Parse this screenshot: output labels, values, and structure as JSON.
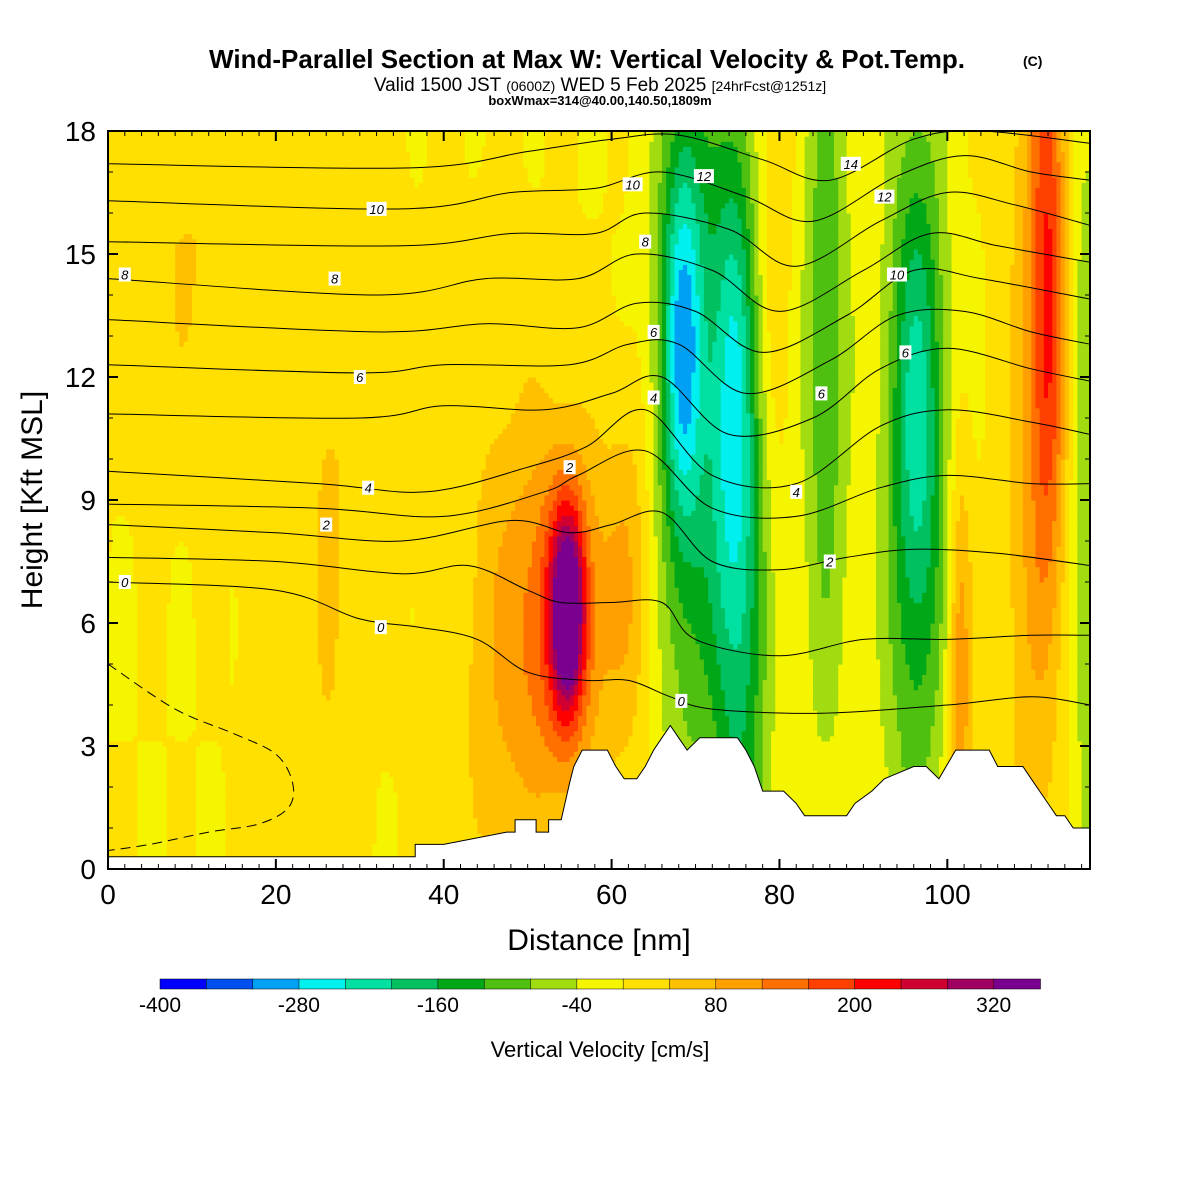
{
  "chart_data": {
    "type": "heatmap",
    "title": "Wind-Parallel Section at Max W: Vertical Velocity & Pot.Temp.",
    "title_mark": "(C)",
    "valid_line": {
      "part1": "Valid 1500 JST",
      "part2": "(0600Z)",
      "part3": "WED 5 Feb 2025",
      "part4": "[24hrFcst@1251z]"
    },
    "box_line": "boxWmax=314@40.00,140.50,1809m",
    "xlabel": "Distance [nm]",
    "ylabel": "Height [Kft MSL]",
    "xlim": [
      0,
      117
    ],
    "ylim": [
      0,
      18
    ],
    "x_ticks": [
      "0",
      "20",
      "40",
      "60",
      "80",
      "100"
    ],
    "x_tick_values": [
      0,
      20,
      40,
      60,
      80,
      100
    ],
    "y_ticks": [
      "0",
      "3",
      "6",
      "9",
      "12",
      "15",
      "18"
    ],
    "y_tick_values": [
      0,
      3,
      6,
      9,
      12,
      15,
      18
    ],
    "colorbar": {
      "label": "Vertical Velocity [cm/s]",
      "levels": [
        -400,
        -360,
        -320,
        -280,
        -240,
        -200,
        -160,
        -120,
        -80,
        -40,
        0,
        40,
        80,
        120,
        160,
        200,
        240,
        280,
        320,
        360
      ],
      "colors": [
        "#0000ff",
        "#0050f0",
        "#00a0f5",
        "#00f0f0",
        "#00e0a0",
        "#00c060",
        "#00a818",
        "#50c010",
        "#a0dc10",
        "#f5f500",
        "#ffe000",
        "#ffc000",
        "#ffa000",
        "#ff7000",
        "#ff4000",
        "#ff0000",
        "#d00030",
        "#a00060",
        "#7a0090"
      ],
      "tick_labels": [
        "-400",
        "-280",
        "-160",
        "-40",
        "80",
        "200",
        "320"
      ],
      "tick_values": [
        -400,
        -280,
        -160,
        -40,
        80,
        200,
        320
      ]
    },
    "velocity_features": [
      {
        "x": 54.8,
        "y": 6.3,
        "sx": 1.3,
        "sy": 1.6,
        "value": 300
      },
      {
        "x": 54.5,
        "y": 6.5,
        "sx": 3.0,
        "sy": 2.8,
        "value": 140
      },
      {
        "x": 52.5,
        "y": 5.0,
        "sx": 5.5,
        "sy": 3.5,
        "value": 60
      },
      {
        "x": 62.0,
        "y": 7.2,
        "sx": 2.0,
        "sy": 3.0,
        "value": 70
      },
      {
        "x": 48.0,
        "y": 6.0,
        "sx": 3.0,
        "sy": 5.0,
        "value": 45
      },
      {
        "x": 42.0,
        "y": 5.5,
        "sx": 3.5,
        "sy": 6.0,
        "value": 20
      },
      {
        "x": 68.5,
        "y": 13.0,
        "sx": 1.8,
        "sy": 3.5,
        "value": -200
      },
      {
        "x": 69.0,
        "y": 11.0,
        "sx": 2.8,
        "sy": 8.0,
        "value": -110
      },
      {
        "x": 74.5,
        "y": 11.0,
        "sx": 2.2,
        "sy": 5.0,
        "value": -160
      },
      {
        "x": 75.5,
        "y": 6.0,
        "sx": 2.5,
        "sy": 10.0,
        "value": -120
      },
      {
        "x": 78.5,
        "y": 15.0,
        "sx": 2.0,
        "sy": 5.0,
        "value": 60
      },
      {
        "x": 85.5,
        "y": 13.0,
        "sx": 2.0,
        "sy": 7.0,
        "value": -110
      },
      {
        "x": 96.5,
        "y": 11.0,
        "sx": 2.2,
        "sy": 4.5,
        "value": -150
      },
      {
        "x": 96.0,
        "y": 8.0,
        "sx": 3.0,
        "sy": 9.0,
        "value": -80
      },
      {
        "x": 101.5,
        "y": 4.5,
        "sx": 1.0,
        "sy": 4.0,
        "value": 120
      },
      {
        "x": 112.0,
        "y": 14.0,
        "sx": 1.6,
        "sy": 6.0,
        "value": 200
      },
      {
        "x": 109.0,
        "y": 8.0,
        "sx": 2.0,
        "sy": 10.0,
        "value": 50
      },
      {
        "x": 116.5,
        "y": 10.0,
        "sx": 1.5,
        "sy": 8.0,
        "value": -70
      },
      {
        "x": 10.0,
        "y": 15.0,
        "sx": 6.0,
        "sy": 3.5,
        "value": 40
      },
      {
        "x": 28.0,
        "y": 14.0,
        "sx": 4.0,
        "sy": 6.0,
        "value": 30
      },
      {
        "x": 18.0,
        "y": 6.0,
        "sx": 1.5,
        "sy": 8.0,
        "value": 30
      },
      {
        "x": 26.0,
        "y": 5.0,
        "sx": 2.0,
        "sy": 6.0,
        "value": 30
      }
    ],
    "terrain": [
      [
        0,
        0.3
      ],
      [
        36.6,
        0.3
      ],
      [
        36.6,
        0.6
      ],
      [
        40,
        0.6
      ],
      [
        40,
        0.6
      ],
      [
        47.5,
        0.9
      ],
      [
        48.5,
        0.9
      ],
      [
        48.5,
        1.2
      ],
      [
        51,
        1.2
      ],
      [
        51,
        0.9
      ],
      [
        52.5,
        0.9
      ],
      [
        52.5,
        1.2
      ],
      [
        54,
        1.2
      ],
      [
        55,
        2.1
      ],
      [
        55.5,
        2.5
      ],
      [
        56.5,
        2.9
      ],
      [
        59.5,
        2.9
      ],
      [
        60.5,
        2.5
      ],
      [
        61.5,
        2.2
      ],
      [
        63,
        2.2
      ],
      [
        64,
        2.5
      ],
      [
        65,
        2.9
      ],
      [
        66,
        3.2
      ],
      [
        67,
        3.5
      ],
      [
        68,
        3.2
      ],
      [
        69,
        2.9
      ],
      [
        70.5,
        3.2
      ],
      [
        75,
        3.2
      ],
      [
        76,
        2.9
      ],
      [
        77,
        2.5
      ],
      [
        78,
        1.9
      ],
      [
        80.5,
        1.9
      ],
      [
        82,
        1.6
      ],
      [
        83,
        1.3
      ],
      [
        88,
        1.3
      ],
      [
        89,
        1.6
      ],
      [
        91,
        1.9
      ],
      [
        92.5,
        2.2
      ],
      [
        96,
        2.5
      ],
      [
        97.5,
        2.5
      ],
      [
        99,
        2.2
      ],
      [
        101,
        2.9
      ],
      [
        105,
        2.9
      ],
      [
        106,
        2.5
      ],
      [
        109,
        2.5
      ],
      [
        110,
        2.2
      ],
      [
        111,
        1.9
      ],
      [
        112,
        1.6
      ],
      [
        113,
        1.3
      ],
      [
        114,
        1.3
      ],
      [
        115,
        1.0
      ],
      [
        117,
        1.0
      ]
    ],
    "theta_contours": [
      {
        "label": "0",
        "pts": [
          [
            0,
            7.0
          ],
          [
            20,
            6.8
          ],
          [
            30,
            6.1
          ],
          [
            37,
            5.9
          ],
          [
            44,
            5.6
          ],
          [
            50,
            4.8
          ],
          [
            57,
            4.6
          ],
          [
            62,
            4.6
          ],
          [
            67,
            4.2
          ],
          [
            72,
            3.9
          ],
          [
            85,
            3.8
          ],
          [
            100,
            4.0
          ],
          [
            110,
            4.2
          ],
          [
            117,
            4.0
          ]
        ]
      },
      {
        "label": "",
        "pts": [
          [
            0,
            7.6
          ],
          [
            20,
            7.5
          ],
          [
            35,
            7.2
          ],
          [
            43,
            7.4
          ],
          [
            50,
            6.8
          ],
          [
            54,
            6.5
          ],
          [
            60,
            6.5
          ],
          [
            66,
            6.5
          ],
          [
            70,
            5.6
          ],
          [
            80,
            5.2
          ],
          [
            90,
            5.6
          ],
          [
            100,
            5.6
          ],
          [
            110,
            5.7
          ],
          [
            117,
            5.7
          ]
        ]
      },
      {
        "label": "2",
        "pts": [
          [
            0,
            8.4
          ],
          [
            20,
            8.2
          ],
          [
            35,
            8.0
          ],
          [
            48,
            8.5
          ],
          [
            55,
            8.2
          ],
          [
            60,
            8.4
          ],
          [
            66,
            8.7
          ],
          [
            72,
            7.5
          ],
          [
            80,
            7.3
          ],
          [
            88,
            7.6
          ],
          [
            96,
            7.8
          ],
          [
            106,
            7.7
          ],
          [
            117,
            7.4
          ]
        ]
      },
      {
        "label": "",
        "pts": [
          [
            0,
            8.9
          ],
          [
            25,
            8.8
          ],
          [
            40,
            8.6
          ],
          [
            52,
            9.2
          ],
          [
            56,
            9.6
          ],
          [
            64,
            10.2
          ],
          [
            72,
            8.8
          ],
          [
            82,
            8.6
          ],
          [
            92,
            9.3
          ],
          [
            100,
            9.6
          ],
          [
            110,
            9.4
          ],
          [
            117,
            9.4
          ]
        ]
      },
      {
        "label": "4",
        "pts": [
          [
            0,
            9.7
          ],
          [
            25,
            9.4
          ],
          [
            38,
            9.2
          ],
          [
            50,
            9.8
          ],
          [
            57,
            10.3
          ],
          [
            64,
            11.2
          ],
          [
            72,
            9.6
          ],
          [
            82,
            9.4
          ],
          [
            92,
            10.8
          ],
          [
            100,
            11.2
          ],
          [
            110,
            10.9
          ],
          [
            117,
            10.6
          ]
        ]
      },
      {
        "label": "",
        "pts": [
          [
            0,
            11.1
          ],
          [
            30,
            11.0
          ],
          [
            40,
            11.3
          ],
          [
            52,
            11.2
          ],
          [
            60,
            11.6
          ],
          [
            66,
            12.0
          ],
          [
            74,
            10.6
          ],
          [
            84,
            11.0
          ],
          [
            92,
            12.2
          ],
          [
            100,
            12.7
          ],
          [
            110,
            12.2
          ],
          [
            117,
            11.9
          ]
        ]
      },
      {
        "label": "6",
        "pts": [
          [
            0,
            12.3
          ],
          [
            30,
            12.1
          ],
          [
            40,
            12.3
          ],
          [
            55,
            12.3
          ],
          [
            62,
            12.8
          ],
          [
            68,
            12.8
          ],
          [
            76,
            11.6
          ],
          [
            86,
            12.4
          ],
          [
            94,
            13.5
          ],
          [
            102,
            13.6
          ],
          [
            110,
            13.1
          ],
          [
            117,
            12.8
          ]
        ]
      },
      {
        "label": "",
        "pts": [
          [
            0,
            13.4
          ],
          [
            32,
            13.1
          ],
          [
            45,
            13.3
          ],
          [
            56,
            13.2
          ],
          [
            63,
            13.8
          ],
          [
            70,
            13.6
          ],
          [
            78,
            12.6
          ],
          [
            88,
            13.5
          ],
          [
            96,
            14.6
          ],
          [
            104,
            14.4
          ],
          [
            117,
            13.9
          ]
        ]
      },
      {
        "label": "8",
        "pts": [
          [
            0,
            14.4
          ],
          [
            32,
            14.0
          ],
          [
            45,
            14.4
          ],
          [
            56,
            14.4
          ],
          [
            63,
            15.0
          ],
          [
            72,
            14.6
          ],
          [
            80,
            13.6
          ],
          [
            90,
            14.6
          ],
          [
            98,
            15.5
          ],
          [
            106,
            15.2
          ],
          [
            117,
            14.8
          ]
        ]
      },
      {
        "label": "",
        "pts": [
          [
            0,
            15.3
          ],
          [
            35,
            15.2
          ],
          [
            48,
            15.5
          ],
          [
            58,
            15.5
          ],
          [
            64,
            16.0
          ],
          [
            74,
            15.6
          ],
          [
            82,
            14.7
          ],
          [
            92,
            15.8
          ],
          [
            100,
            16.5
          ],
          [
            108,
            16.2
          ],
          [
            117,
            15.7
          ]
        ]
      },
      {
        "label": "10",
        "pts": [
          [
            0,
            16.3
          ],
          [
            35,
            16.1
          ],
          [
            48,
            16.5
          ],
          [
            58,
            16.6
          ],
          [
            66,
            17.0
          ],
          [
            76,
            16.4
          ],
          [
            84,
            15.8
          ],
          [
            94,
            16.9
          ],
          [
            102,
            17.4
          ],
          [
            110,
            17.0
          ],
          [
            117,
            16.8
          ]
        ]
      },
      {
        "label": "",
        "pts": [
          [
            0,
            17.2
          ],
          [
            36,
            17.1
          ],
          [
            50,
            17.5
          ],
          [
            60,
            17.8
          ],
          [
            68,
            17.9
          ],
          [
            78,
            17.3
          ],
          [
            86,
            16.8
          ],
          [
            96,
            17.8
          ],
          [
            104,
            18.0
          ],
          [
            117,
            17.7
          ]
        ]
      }
    ],
    "theta_labels": [
      {
        "text": "0",
        "x": 2.0,
        "y": 7.0
      },
      {
        "text": "0",
        "x": 32.5,
        "y": 5.9
      },
      {
        "text": "0",
        "x": 68.3,
        "y": 4.1
      },
      {
        "text": "2",
        "x": 26.0,
        "y": 8.4
      },
      {
        "text": "2",
        "x": 55.0,
        "y": 9.8
      },
      {
        "text": "2",
        "x": 86.0,
        "y": 7.5
      },
      {
        "text": "4",
        "x": 31.0,
        "y": 9.3
      },
      {
        "text": "4",
        "x": 65.0,
        "y": 11.5
      },
      {
        "text": "4",
        "x": 82.0,
        "y": 9.2
      },
      {
        "text": "6",
        "x": 30.0,
        "y": 12.0
      },
      {
        "text": "6",
        "x": 65.0,
        "y": 13.1
      },
      {
        "text": "6",
        "x": 85.0,
        "y": 11.6
      },
      {
        "text": "6",
        "x": 95.0,
        "y": 12.6
      },
      {
        "text": "8",
        "x": 2.0,
        "y": 14.5
      },
      {
        "text": "8",
        "x": 27.0,
        "y": 14.4
      },
      {
        "text": "8",
        "x": 64.0,
        "y": 15.3
      },
      {
        "text": "10",
        "x": 32.0,
        "y": 16.1
      },
      {
        "text": "10",
        "x": 62.5,
        "y": 16.7
      },
      {
        "text": "10",
        "x": 94.0,
        "y": 14.5
      },
      {
        "text": "12",
        "x": 71.0,
        "y": 16.9
      },
      {
        "text": "12",
        "x": 92.5,
        "y": 16.4
      },
      {
        "text": "14",
        "x": 88.5,
        "y": 17.2
      }
    ],
    "dashed_contour": [
      [
        0,
        5.0
      ],
      [
        8,
        3.9
      ],
      [
        15,
        3.3
      ],
      [
        20,
        2.8
      ],
      [
        22,
        2.1
      ],
      [
        21.5,
        1.5
      ],
      [
        18,
        1.1
      ],
      [
        12,
        0.9
      ],
      [
        5,
        0.6
      ],
      [
        0,
        0.45
      ]
    ]
  }
}
